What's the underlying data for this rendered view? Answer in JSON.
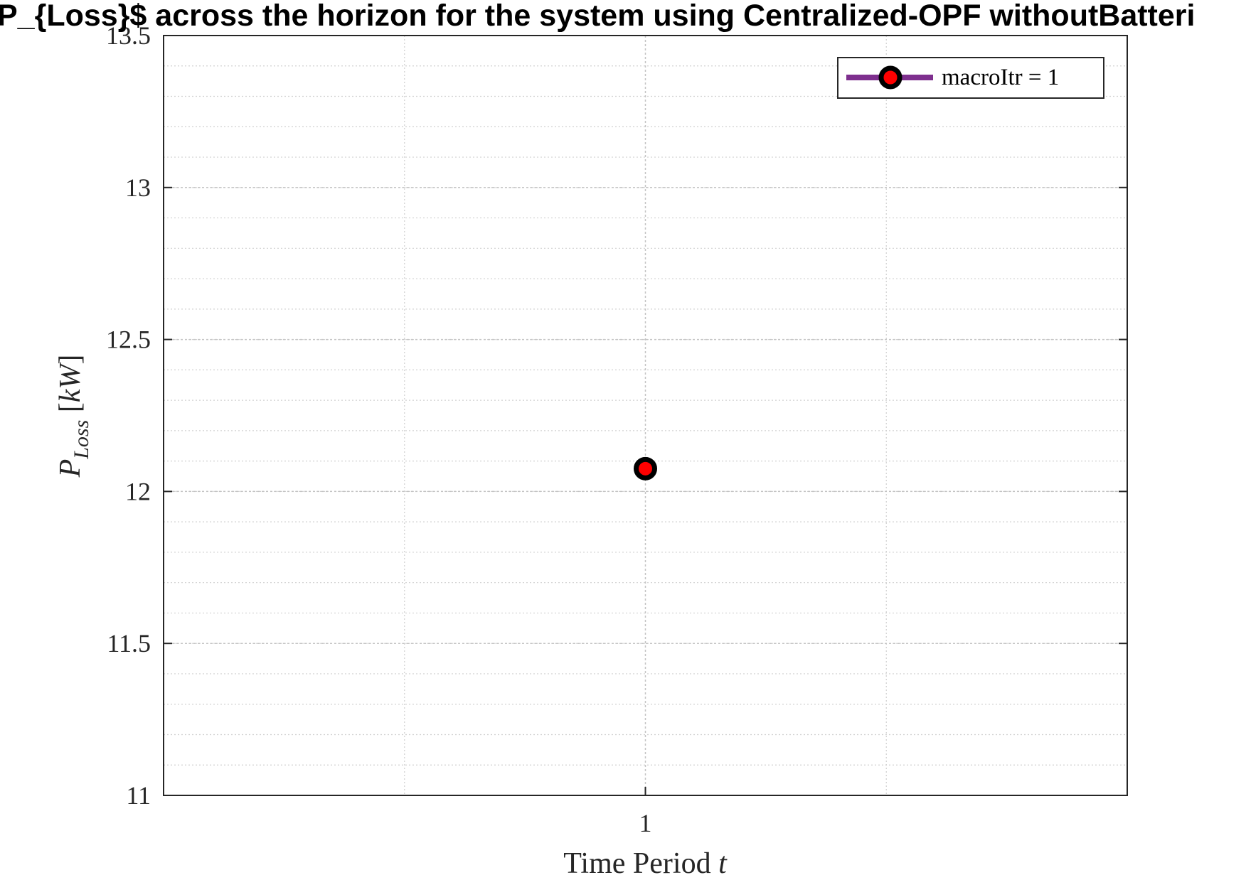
{
  "chart_data": {
    "type": "line",
    "title": "P_{Loss}$ across the horizon for the system using Centralized-OPF withoutBatteri",
    "xlabel": "Time Period",
    "xlabel_var": "t",
    "ylabel_main": "P",
    "ylabel_sub": "Loss",
    "ylabel_unit": "kW",
    "x": [
      1
    ],
    "series": [
      {
        "name": "macroItr = 1",
        "values": [
          12.075
        ],
        "line_color": "#7e2f8e",
        "marker_edge": "#000000",
        "marker_face": "#ff0000"
      }
    ],
    "xlim": [
      0,
      2
    ],
    "ylim": [
      11,
      13.5
    ],
    "x_ticks": [
      "1"
    ],
    "y_ticks": [
      "11",
      "11.5",
      "12",
      "12.5",
      "13",
      "13.5"
    ],
    "grid": true,
    "minor_grid": true,
    "legend_position": "top-right"
  }
}
